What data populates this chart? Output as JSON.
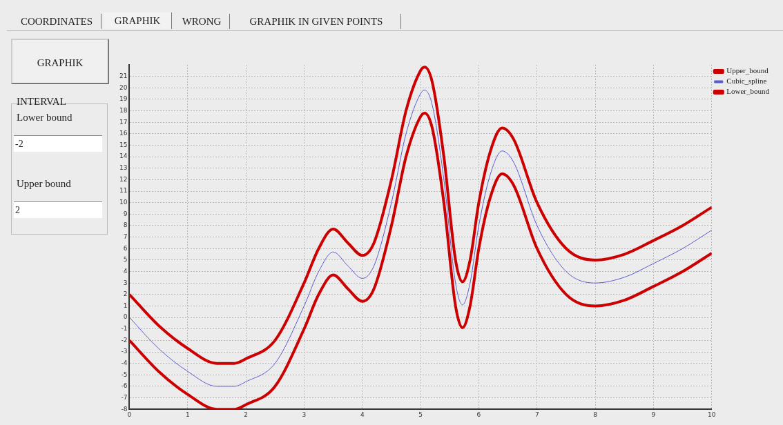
{
  "chart_data": {
    "type": "line",
    "x": [
      0,
      0.5,
      1,
      1.5,
      1.8,
      2,
      2.5,
      3,
      3.25,
      3.5,
      3.75,
      4,
      4.2,
      4.5,
      4.75,
      5,
      5.07,
      5.2,
      5.4,
      5.6,
      5.72,
      5.85,
      6,
      6.2,
      6.4,
      6.6,
      7,
      7.5,
      8,
      8.5,
      9,
      9.5,
      10
    ],
    "series": [
      {
        "name": "Upper_bound",
        "color": "#cc0000",
        "values": [
          2,
          -0.7,
          -2.7,
          -4,
          -4,
          -3.6,
          -2,
          3,
          6,
          7.7,
          6.5,
          5.4,
          6.5,
          12,
          18,
          21.5,
          21.8,
          20.5,
          14,
          5,
          3.1,
          5,
          10,
          14.5,
          16.5,
          15.5,
          10,
          6,
          5,
          5.5,
          6.7,
          8,
          9.6
        ]
      },
      {
        "name": "Cubic_spline",
        "color": "#5a5ad2",
        "values": [
          0,
          -2.7,
          -4.7,
          -6,
          -6,
          -5.6,
          -4,
          1,
          4,
          5.7,
          4.5,
          3.4,
          4.5,
          10,
          16,
          19.5,
          19.8,
          18.5,
          12,
          3,
          1.1,
          3,
          8,
          12.5,
          14.5,
          13.5,
          8,
          4,
          3,
          3.5,
          4.7,
          6,
          7.6
        ]
      },
      {
        "name": "Lower_bound",
        "color": "#cc0000",
        "values": [
          -2,
          -4.7,
          -6.7,
          -8,
          -8,
          -7.6,
          -6,
          -1,
          2,
          3.7,
          2.5,
          1.4,
          2.5,
          8,
          14,
          17.5,
          17.8,
          16.5,
          10,
          1,
          -0.9,
          1,
          6,
          10.5,
          12.5,
          11.5,
          6,
          2,
          1,
          1.5,
          2.7,
          4,
          5.6
        ]
      }
    ],
    "xlim": [
      0,
      10
    ],
    "xticks": [
      0,
      1,
      2,
      3,
      4,
      5,
      6,
      7,
      8,
      9,
      10
    ],
    "ylim": [
      -8,
      22
    ],
    "yticks": [
      -8,
      -7,
      -6,
      -5,
      -4,
      -3,
      -2,
      -1,
      0,
      1,
      2,
      3,
      4,
      5,
      6,
      7,
      8,
      9,
      10,
      11,
      12,
      13,
      14,
      15,
      16,
      17,
      18,
      19,
      20,
      21
    ],
    "grid": true,
    "legend": "top right",
    "annotations": [
      "COORDINATES",
      "GRAPHIK",
      "WRONG",
      "GRAPHIK IN GIVEN POINTS",
      "GRAPHIK",
      "INTERVAL",
      "Lower bound",
      "-2",
      "Upper bound",
      "2"
    ]
  }
}
